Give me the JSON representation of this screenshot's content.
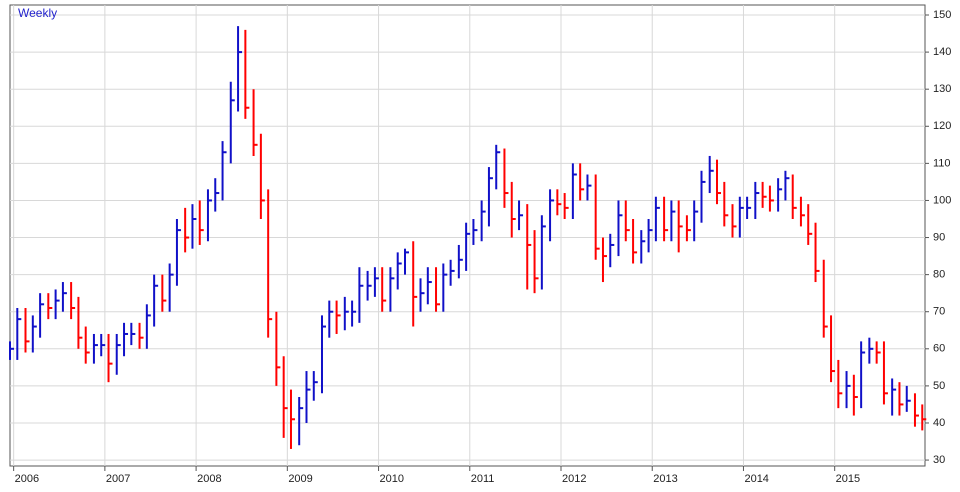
{
  "chart_data": {
    "type": "ohlc",
    "title": "Weekly",
    "x": [
      2005.96,
      2006.04,
      2006.13,
      2006.21,
      2006.29,
      2006.38,
      2006.46,
      2006.54,
      2006.63,
      2006.71,
      2006.79,
      2006.88,
      2006.96,
      2007.04,
      2007.13,
      2007.21,
      2007.29,
      2007.38,
      2007.46,
      2007.54,
      2007.63,
      2007.71,
      2007.79,
      2007.88,
      2007.96,
      2008.04,
      2008.13,
      2008.21,
      2008.29,
      2008.38,
      2008.46,
      2008.54,
      2008.63,
      2008.71,
      2008.79,
      2008.88,
      2008.96,
      2009.04,
      2009.13,
      2009.21,
      2009.29,
      2009.38,
      2009.46,
      2009.54,
      2009.63,
      2009.71,
      2009.79,
      2009.88,
      2009.96,
      2010.04,
      2010.13,
      2010.21,
      2010.29,
      2010.38,
      2010.46,
      2010.54,
      2010.63,
      2010.71,
      2010.79,
      2010.88,
      2010.96,
      2011.04,
      2011.13,
      2011.21,
      2011.29,
      2011.38,
      2011.46,
      2011.54,
      2011.63,
      2011.71,
      2011.79,
      2011.88,
      2011.96,
      2012.04,
      2012.13,
      2012.21,
      2012.29,
      2012.38,
      2012.46,
      2012.54,
      2012.63,
      2012.71,
      2012.79,
      2012.88,
      2012.96,
      2013.04,
      2013.13,
      2013.21,
      2013.29,
      2013.38,
      2013.46,
      2013.54,
      2013.63,
      2013.71,
      2013.79,
      2013.88,
      2013.96,
      2014.04,
      2014.13,
      2014.21,
      2014.29,
      2014.38,
      2014.46,
      2014.54,
      2014.63,
      2014.71,
      2014.79,
      2014.88,
      2014.96,
      2015.04,
      2015.13,
      2015.21,
      2015.29,
      2015.38,
      2015.46,
      2015.54,
      2015.63,
      2015.71,
      2015.79,
      2015.88,
      2015.96
    ],
    "high": [
      62,
      71,
      71,
      69,
      75,
      75,
      76,
      78,
      78,
      74,
      66,
      64,
      64,
      64,
      64,
      67,
      67,
      67,
      72,
      80,
      80,
      83,
      95,
      98,
      99,
      100,
      103,
      106,
      116,
      132,
      147,
      146,
      130,
      118,
      103,
      70,
      58,
      49,
      47,
      54,
      54,
      69,
      73,
      73,
      74,
      73,
      82,
      81,
      82,
      82,
      82,
      86,
      87,
      89,
      79,
      82,
      82,
      83,
      84,
      88,
      94,
      95,
      100,
      109,
      115,
      114,
      105,
      100,
      99,
      92,
      96,
      103,
      103,
      102,
      110,
      110,
      107,
      107,
      90,
      91,
      100,
      100,
      95,
      92,
      95,
      101,
      101,
      100,
      100,
      96,
      100,
      108,
      112,
      111,
      105,
      99,
      101,
      101,
      105,
      105,
      104,
      106,
      108,
      107,
      101,
      99,
      94,
      84,
      69,
      57,
      54,
      53,
      62,
      63,
      62,
      62,
      52,
      51,
      50,
      48,
      45
    ],
    "low": [
      57,
      57,
      59,
      59,
      63,
      68,
      68,
      70,
      68,
      60,
      56,
      56,
      58,
      51,
      53,
      58,
      61,
      60,
      60,
      66,
      70,
      70,
      77,
      86,
      87,
      88,
      89,
      97,
      100,
      110,
      124,
      122,
      112,
      95,
      63,
      50,
      36,
      33,
      34,
      40,
      46,
      48,
      63,
      64,
      65,
      66,
      67,
      73,
      74,
      70,
      70,
      76,
      80,
      66,
      70,
      72,
      70,
      70,
      77,
      79,
      81,
      88,
      89,
      93,
      103,
      98,
      90,
      92,
      76,
      75,
      76,
      89,
      96,
      95,
      95,
      100,
      100,
      84,
      78,
      82,
      85,
      89,
      83,
      83,
      86,
      89,
      89,
      89,
      86,
      89,
      89,
      94,
      102,
      99,
      93,
      90,
      90,
      95,
      95,
      98,
      97,
      97,
      100,
      95,
      93,
      88,
      78,
      63,
      51,
      44,
      44,
      42,
      44,
      56,
      56,
      45,
      42,
      42,
      43,
      39,
      38
    ],
    "close": [
      60,
      68,
      62,
      66,
      72,
      71,
      73,
      75,
      71,
      63,
      59,
      61,
      61,
      56,
      61,
      64,
      64,
      63,
      69,
      77,
      73,
      80,
      92,
      90,
      95,
      92,
      100,
      102,
      113,
      127,
      140,
      125,
      115,
      100,
      68,
      55,
      44,
      41,
      44,
      49,
      51,
      66,
      70,
      69,
      70,
      70,
      77,
      77,
      79,
      73,
      79,
      83,
      86,
      74,
      75,
      78,
      72,
      80,
      81,
      84,
      91,
      92,
      97,
      106,
      113,
      102,
      95,
      96,
      88,
      79,
      93,
      100,
      99,
      98,
      107,
      103,
      104,
      87,
      85,
      88,
      96,
      92,
      86,
      89,
      92,
      98,
      92,
      97,
      93,
      92,
      97,
      105,
      108,
      102,
      96,
      93,
      98,
      98,
      102,
      101,
      100,
      103,
      106,
      98,
      96,
      91,
      81,
      66,
      54,
      48,
      50,
      47,
      59,
      60,
      59,
      48,
      49,
      45,
      46,
      42,
      41
    ],
    "up_color": "#1010c8",
    "down_color": "#ff0000",
    "xlim": [
      2005.96,
      2015.99
    ],
    "xticks": [
      2006,
      2007,
      2008,
      2009,
      2010,
      2011,
      2012,
      2013,
      2014,
      2015
    ],
    "ylim": [
      28.4,
      152.7
    ],
    "yticks": [
      30,
      40,
      50,
      60,
      70,
      80,
      90,
      100,
      110,
      120,
      130,
      140,
      150
    ],
    "grid": true
  }
}
